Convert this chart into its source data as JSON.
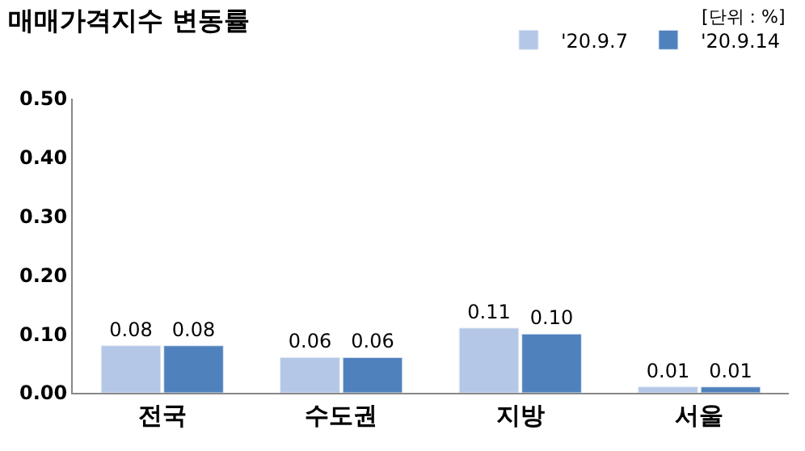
{
  "chart_data": {
    "type": "bar",
    "title": "매매가격지수 변동률",
    "annotations": [
      "[단위 : %]"
    ],
    "categories": [
      "전국",
      "수도권",
      "지방",
      "서울"
    ],
    "series": [
      {
        "name": "'20.9.7",
        "color": "#b4c7e7",
        "values": [
          0.08,
          0.06,
          0.11,
          0.01
        ],
        "value_labels": [
          "0.08",
          "0.06",
          "0.11",
          "0.01"
        ]
      },
      {
        "name": "'20.9.14",
        "color": "#4f81bd",
        "values": [
          0.08,
          0.06,
          0.1,
          0.01
        ],
        "value_labels": [
          "0.08",
          "0.06",
          "0.10",
          "0.01"
        ]
      }
    ],
    "ylim": [
      0,
      0.5
    ],
    "yticks": [
      {
        "value": 0,
        "label": "0.00"
      },
      {
        "value": 0.1,
        "label": "0.10"
      },
      {
        "value": 0.2,
        "label": "0.20"
      },
      {
        "value": 0.3,
        "label": "0.30"
      },
      {
        "value": 0.4,
        "label": "0.40"
      },
      {
        "value": 0.5,
        "label": "0.50"
      }
    ],
    "legend": "top right"
  }
}
